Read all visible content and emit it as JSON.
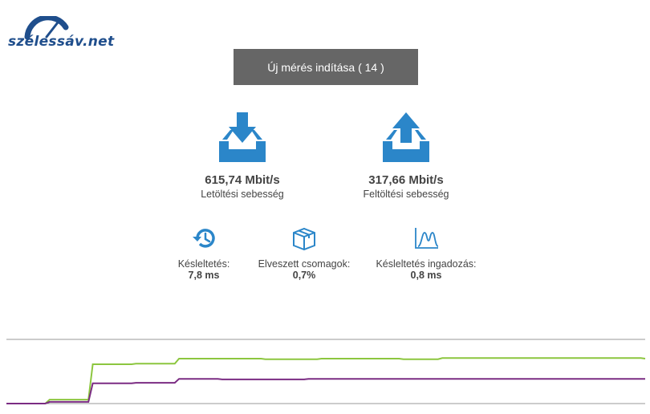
{
  "logo": {
    "text": "szélessáv.net",
    "color": "#1f4e8c"
  },
  "start_button": {
    "label": "Új mérés indítása ( 14 )",
    "bg": "#666666"
  },
  "download": {
    "value": "615,74 Mbit/s",
    "label": "Letöltési sebesség",
    "icon": "download-tray-icon"
  },
  "upload": {
    "value": "317,66 Mbit/s",
    "label": "Feltöltési sebesség",
    "icon": "upload-tray-icon"
  },
  "latency": {
    "label": "Késleltetés:",
    "value": "7,8 ms",
    "icon": "history-clock-icon"
  },
  "packet_loss": {
    "label": "Elveszett csomagok:",
    "value": "0,7%",
    "icon": "package-box-icon"
  },
  "jitter": {
    "label": "Késleltetés ingadozás:",
    "value": "0,8 ms",
    "icon": "distribution-chart-icon"
  },
  "colors": {
    "accent": "#2b86c9",
    "download_line": "#8cc63f",
    "upload_line": "#7b2c83",
    "axis": "#999999"
  },
  "chart_data": {
    "type": "line",
    "series": [
      {
        "values": [
          0,
          0,
          0,
          0,
          0,
          0,
          0,
          0,
          0,
          0,
          0.07,
          0.07,
          0.07,
          0.07,
          0.07,
          0.07,
          0.07,
          0.07,
          0.07,
          0.07,
          0.7,
          0.7,
          0.7,
          0.7,
          0.7,
          0.7,
          0.7,
          0.7,
          0.7,
          0.7,
          0.71,
          0.71,
          0.71,
          0.71,
          0.71,
          0.71,
          0.71,
          0.71,
          0.71,
          0.71,
          0.8,
          0.8,
          0.8,
          0.8,
          0.8,
          0.8,
          0.8,
          0.8,
          0.8,
          0.8,
          0.8,
          0.8,
          0.8,
          0.8,
          0.8,
          0.8,
          0.8,
          0.8,
          0.8,
          0.8,
          0.79,
          0.79,
          0.79,
          0.79,
          0.79,
          0.79,
          0.79,
          0.79,
          0.79,
          0.79,
          0.79,
          0.79,
          0.79,
          0.8,
          0.8,
          0.8,
          0.8,
          0.8,
          0.8,
          0.8,
          0.8,
          0.8,
          0.8,
          0.8,
          0.8,
          0.8,
          0.8,
          0.8,
          0.8,
          0.8,
          0.8,
          0.8,
          0.79,
          0.79,
          0.79,
          0.79,
          0.79,
          0.79,
          0.79,
          0.79,
          0.79,
          0.81,
          0.81,
          0.81,
          0.81,
          0.81,
          0.81,
          0.81,
          0.81,
          0.81,
          0.81,
          0.81,
          0.81,
          0.81,
          0.81,
          0.81,
          0.81,
          0.81,
          0.81,
          0.81,
          0.81,
          0.81,
          0.81,
          0.81,
          0.81,
          0.81,
          0.81,
          0.81,
          0.81,
          0.81,
          0.81,
          0.81,
          0.81,
          0.81,
          0.81,
          0.81,
          0.81,
          0.81,
          0.81,
          0.81,
          0.81,
          0.81,
          0.81,
          0.81,
          0.81,
          0.81,
          0.81,
          0.81,
          0.8
        ]
      },
      {
        "values": [
          0,
          0,
          0,
          0,
          0,
          0,
          0,
          0,
          0,
          0,
          0.03,
          0.03,
          0.03,
          0.03,
          0.03,
          0.03,
          0.03,
          0.03,
          0.03,
          0.03,
          0.36,
          0.36,
          0.36,
          0.36,
          0.36,
          0.36,
          0.36,
          0.36,
          0.36,
          0.36,
          0.37,
          0.37,
          0.37,
          0.37,
          0.37,
          0.37,
          0.37,
          0.37,
          0.37,
          0.37,
          0.44,
          0.44,
          0.44,
          0.44,
          0.44,
          0.44,
          0.44,
          0.44,
          0.44,
          0.44,
          0.43,
          0.43,
          0.43,
          0.43,
          0.43,
          0.43,
          0.43,
          0.43,
          0.43,
          0.43,
          0.43,
          0.43,
          0.43,
          0.43,
          0.43,
          0.43,
          0.43,
          0.43,
          0.43,
          0.43,
          0.44,
          0.44,
          0.44,
          0.44,
          0.44,
          0.44,
          0.44,
          0.44,
          0.44,
          0.44,
          0.44,
          0.44,
          0.44,
          0.44,
          0.44,
          0.44,
          0.44,
          0.44,
          0.44,
          0.44,
          0.44,
          0.44,
          0.44,
          0.44,
          0.44,
          0.44,
          0.44,
          0.44,
          0.44,
          0.44,
          0.44,
          0.44,
          0.44,
          0.44,
          0.44,
          0.44,
          0.44,
          0.44,
          0.44,
          0.44,
          0.44,
          0.44,
          0.44,
          0.44,
          0.44,
          0.44,
          0.44,
          0.44,
          0.44,
          0.44,
          0.44,
          0.44,
          0.44,
          0.44,
          0.44,
          0.44,
          0.44,
          0.44,
          0.44,
          0.44,
          0.44,
          0.44,
          0.44,
          0.44,
          0.44,
          0.44,
          0.44,
          0.44,
          0.44,
          0.44,
          0.44,
          0.44,
          0.44,
          0.44,
          0.44,
          0.44,
          0.44,
          0.44,
          0.44
        ]
      }
    ],
    "ylim": [
      0,
      1
    ],
    "grid": false
  }
}
